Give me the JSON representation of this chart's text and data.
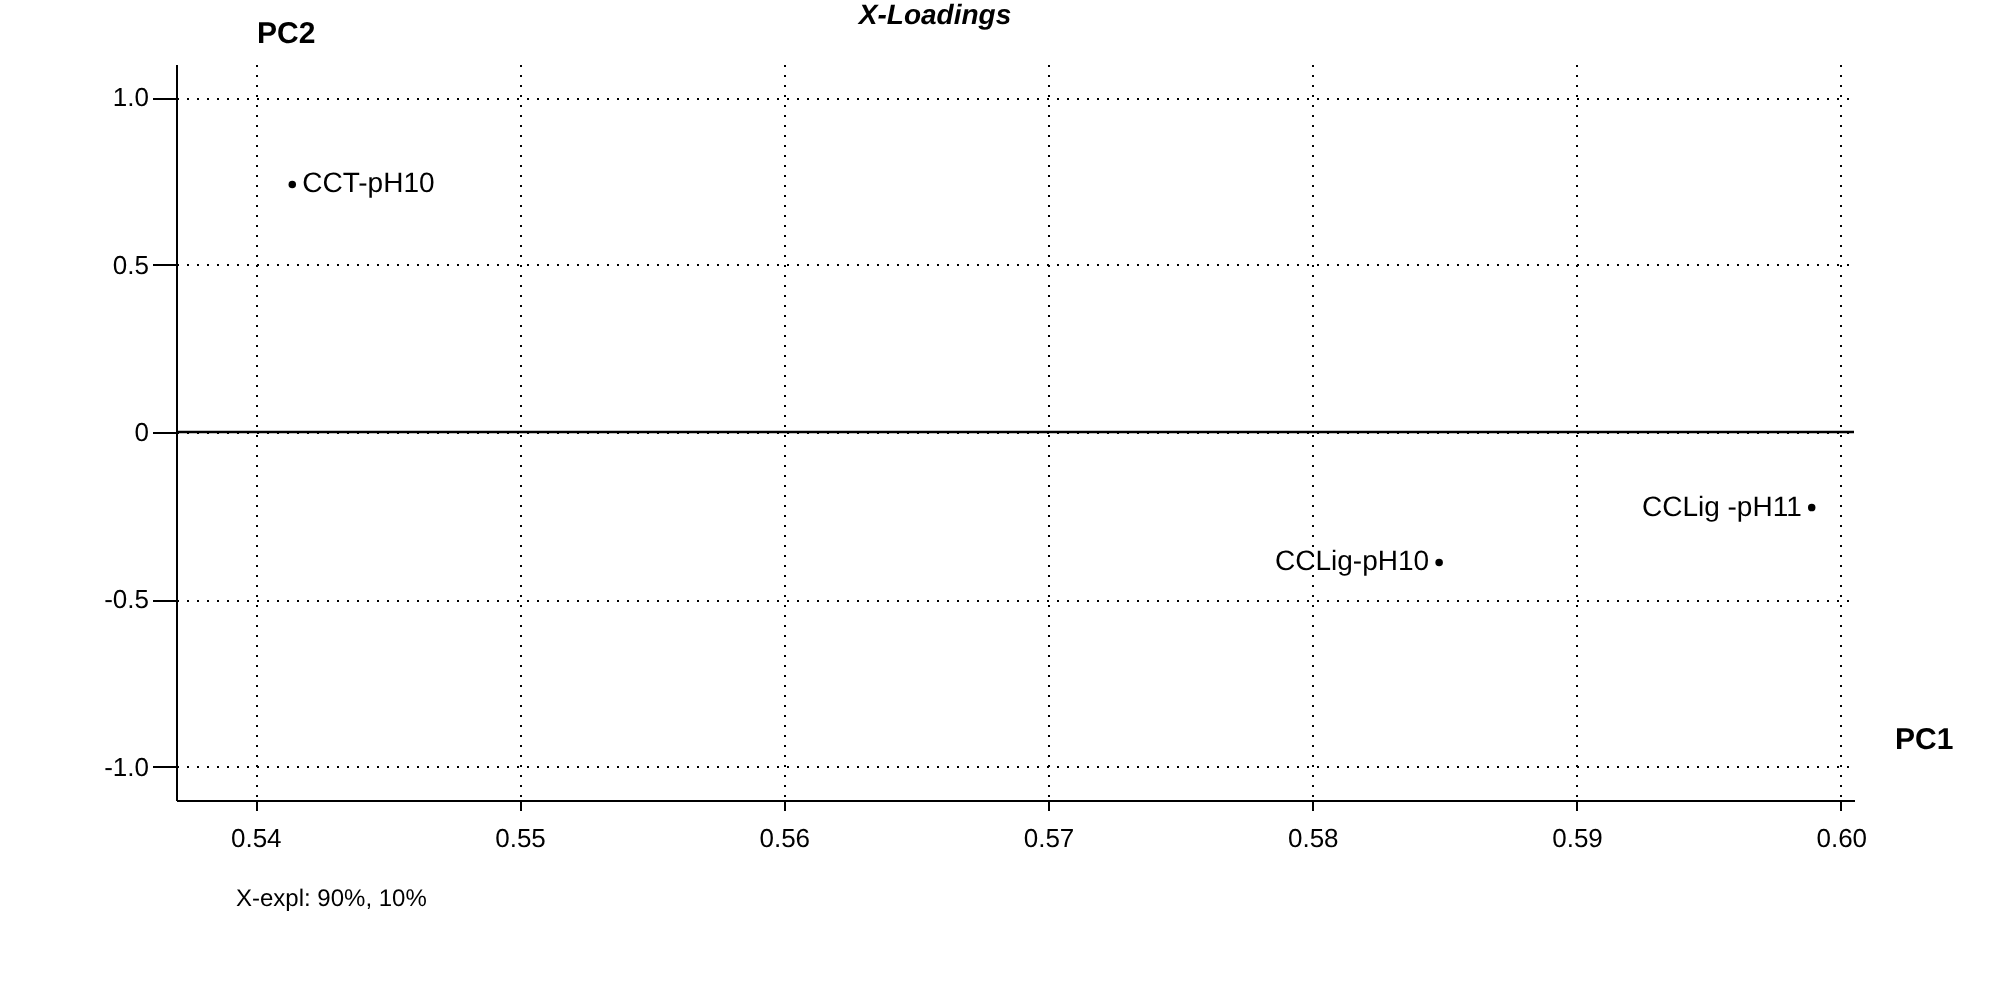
{
  "chart_data": {
    "type": "scatter",
    "title": "X-Loadings",
    "xlabel": "PC1",
    "ylabel": "PC2",
    "annotations": [
      "X-expl: 90%, 10%"
    ],
    "series": [
      {
        "name": "CCT-pH10",
        "color": "#000000",
        "x": [
          0.5414
        ],
        "values": [
          0.74
        ]
      },
      {
        "name": "CCLig -pH11",
        "color": "#000000",
        "x": [
          0.5989
        ],
        "values": [
          -0.226
        ]
      },
      {
        "name": "CCLig-pH10",
        "color": "#000000",
        "x": [
          0.5848
        ],
        "values": [
          -0.39
        ]
      }
    ],
    "xlim": [
      0.537,
      0.6005
    ],
    "xticks": [
      {
        "value": 0.54,
        "label": "0.54"
      },
      {
        "value": 0.55,
        "label": "0.55"
      },
      {
        "value": 0.56,
        "label": "0.56"
      },
      {
        "value": 0.57,
        "label": "0.57"
      },
      {
        "value": 0.58,
        "label": "0.58"
      },
      {
        "value": 0.59,
        "label": "0.59"
      },
      {
        "value": 0.6,
        "label": "0.60"
      }
    ],
    "ylim": [
      -1.1,
      1.1
    ],
    "yticks": [
      {
        "value": -1,
        "label": "-1.0"
      },
      -0.5,
      0,
      0.5,
      {
        "value": 1,
        "label": "1.0"
      }
    ],
    "ref_lines": [
      {
        "axis": "y",
        "value": 0,
        "color": "#000000",
        "line_style": "solid"
      }
    ],
    "grid": true,
    "marker": "circle"
  }
}
